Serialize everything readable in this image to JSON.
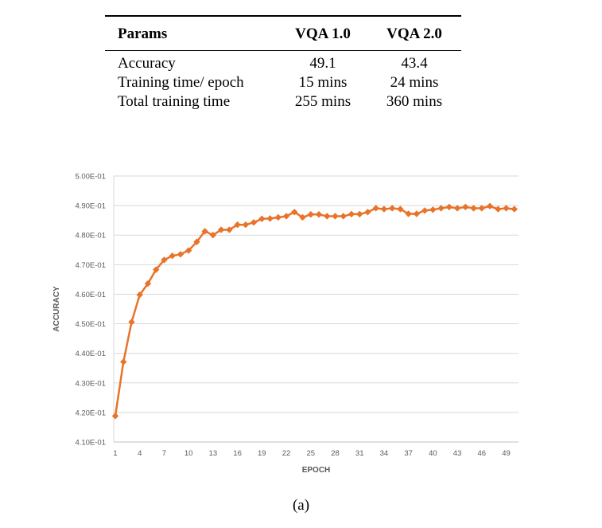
{
  "table": {
    "headers": [
      "Params",
      "VQA 1.0",
      "VQA 2.0"
    ],
    "rows": [
      [
        "Accuracy",
        "49.1",
        "43.4"
      ],
      [
        "Training time/ epoch",
        "15 mins",
        "24 mins"
      ],
      [
        "Total training time",
        "255 mins",
        "360 mins"
      ]
    ]
  },
  "caption": "(a)",
  "chart_data": {
    "type": "line",
    "xlabel": "EPOCH",
    "ylabel": "ACCURACY",
    "ylim": [
      0.41,
      0.5
    ],
    "yticks": [
      "4.10E-01",
      "4.20E-01",
      "4.30E-01",
      "4.40E-01",
      "4.50E-01",
      "4.60E-01",
      "4.70E-01",
      "4.80E-01",
      "4.90E-01",
      "5.00E-01"
    ],
    "xticks": [
      "1",
      "4",
      "7",
      "10",
      "13",
      "16",
      "19",
      "22",
      "25",
      "28",
      "31",
      "34",
      "37",
      "40",
      "43",
      "46",
      "49"
    ],
    "grid": true,
    "series": [
      {
        "color": "#e8732a",
        "marker": "diamond",
        "x": [
          1,
          2,
          3,
          4,
          5,
          6,
          7,
          8,
          9,
          10,
          11,
          12,
          13,
          14,
          15,
          16,
          17,
          18,
          19,
          20,
          21,
          22,
          23,
          24,
          25,
          26,
          27,
          28,
          29,
          30,
          31,
          32,
          33,
          34,
          35,
          36,
          37,
          38,
          39,
          40,
          41,
          42,
          43,
          44,
          45,
          46,
          47,
          48,
          49,
          50
        ],
        "values": [
          0.4188,
          0.4371,
          0.4506,
          0.4598,
          0.4636,
          0.4683,
          0.4716,
          0.473,
          0.4735,
          0.4748,
          0.4777,
          0.4813,
          0.48,
          0.4818,
          0.4818,
          0.4835,
          0.4835,
          0.4843,
          0.4855,
          0.4856,
          0.486,
          0.4864,
          0.4878,
          0.486,
          0.487,
          0.487,
          0.4864,
          0.4864,
          0.4864,
          0.4871,
          0.4871,
          0.4878,
          0.4891,
          0.4888,
          0.4891,
          0.4888,
          0.4872,
          0.4872,
          0.4883,
          0.4886,
          0.4891,
          0.4895,
          0.4891,
          0.4895,
          0.4891,
          0.4891,
          0.4898,
          0.4888,
          0.4891,
          0.4888
        ]
      }
    ]
  }
}
